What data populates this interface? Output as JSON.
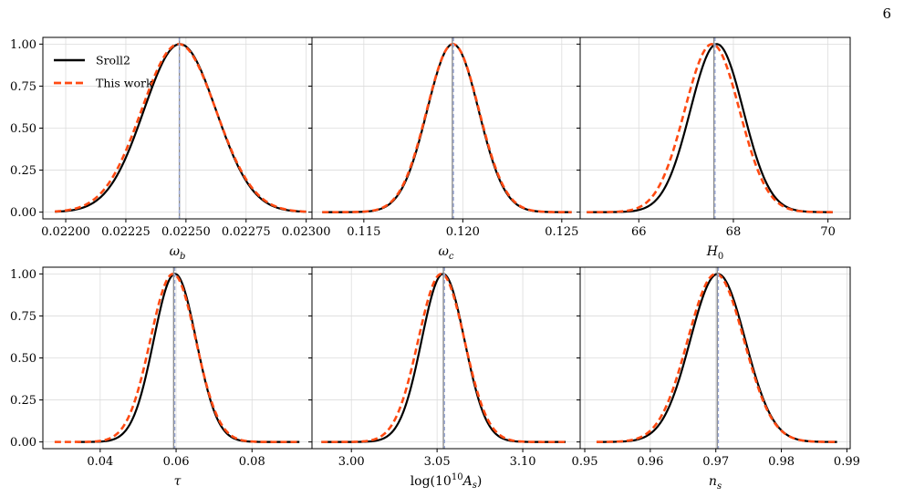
{
  "page": {
    "number": "6"
  },
  "legend": {
    "entries": [
      {
        "label": "Sroll2",
        "color": "#000000",
        "style": "solid"
      },
      {
        "label": "This work",
        "color": "#ff4a12",
        "style": "dashed"
      }
    ],
    "placement": "upper-left of first panel"
  },
  "colors": {
    "sroll2": "#000000",
    "this_work": "#ff4a12",
    "vline_solid": "#8c8c8c",
    "vline_dashed": "#9aa8d6",
    "grid": "#dcdcdc"
  },
  "chart_data": [
    {
      "type": "line",
      "panel": "omega_b",
      "xlabel": "ω_b",
      "xlabel_sub": "b",
      "xlim": [
        0.021905,
        0.023024
      ],
      "ylim": [
        -0.04,
        1.04
      ],
      "grid": true,
      "xticks": [
        0.022,
        0.02225,
        0.0225,
        0.02275,
        0.023
      ],
      "xticklabels": [
        "0.02200",
        "0.02225",
        "0.02250",
        "0.02275",
        "0.02300"
      ],
      "yticks": [
        0,
        0.25,
        0.5,
        0.75,
        1.0
      ],
      "yticklabels": [
        "0.00",
        "0.25",
        "0.50",
        "0.75",
        "1.00"
      ],
      "series": [
        {
          "name": "Sroll2",
          "mean": 0.022475,
          "sigma": 0.00015,
          "range": [
            0.021955,
            0.023
          ],
          "peak_marker": 0.022475
        },
        {
          "name": "This work",
          "mean": 0.02247,
          "sigma": 0.000155,
          "range": [
            0.021955,
            0.023
          ],
          "peak_marker": 0.02247
        }
      ]
    },
    {
      "type": "line",
      "panel": "omega_c",
      "xlabel": "ω_c",
      "xlabel_sub": "c",
      "xlim": [
        0.11238,
        0.12593
      ],
      "ylim": [
        -0.04,
        1.04
      ],
      "grid": true,
      "xticks": [
        0.115,
        0.12,
        0.125
      ],
      "xticklabels": [
        "0.115",
        "0.120",
        "0.125"
      ],
      "yticks": [
        0,
        0.25,
        0.5,
        0.75,
        1.0
      ],
      "series": [
        {
          "name": "Sroll2",
          "mean": 0.1195,
          "sigma": 0.0013,
          "range": [
            0.1129,
            0.1255
          ],
          "peak_marker": 0.1195
        },
        {
          "name": "This work",
          "mean": 0.1195,
          "sigma": 0.00132,
          "range": [
            0.1129,
            0.1255
          ],
          "peak_marker": 0.1195
        }
      ]
    },
    {
      "type": "line",
      "panel": "H0",
      "xlabel": "H",
      "xlabel_sub": "0",
      "xlim": [
        64.76,
        70.47
      ],
      "ylim": [
        -0.04,
        1.04
      ],
      "grid": true,
      "xticks": [
        66,
        68,
        70
      ],
      "xticklabels": [
        "66",
        "68",
        "70"
      ],
      "yticks": [
        0,
        0.25,
        0.5,
        0.75,
        1.0
      ],
      "series": [
        {
          "name": "Sroll2",
          "mean": 67.65,
          "sigma": 0.56,
          "range": [
            64.9,
            70.1
          ],
          "peak_marker": 67.6
        },
        {
          "name": "This work",
          "mean": 67.55,
          "sigma": 0.58,
          "range": [
            64.9,
            70.1
          ],
          "peak_marker": 67.6
        }
      ]
    },
    {
      "type": "line",
      "panel": "tau",
      "xlabel": "τ",
      "xlabel_sub": "",
      "xlim": [
        0.0249,
        0.0958
      ],
      "ylim": [
        -0.04,
        1.04
      ],
      "grid": true,
      "xticks": [
        0.04,
        0.06,
        0.08
      ],
      "xticklabels": [
        "0.04",
        "0.06",
        "0.08"
      ],
      "yticks": [
        0,
        0.25,
        0.5,
        0.75,
        1.0
      ],
      "series": [
        {
          "name": "Sroll2",
          "mean": 0.0597,
          "sigma": 0.0056,
          "range": [
            0.034,
            0.0925
          ],
          "peak_marker": 0.0595
        },
        {
          "name": "This work",
          "mean": 0.0592,
          "sigma": 0.006,
          "range": [
            0.028,
            0.0925
          ],
          "peak_marker": 0.0595
        }
      ]
    },
    {
      "type": "line",
      "panel": "logAs",
      "xlabel": "log(10",
      "xlabel_sup": "10",
      "xlabel_tail": "A",
      "xlabel_sub": "s",
      "xlim": [
        2.977,
        3.1335
      ],
      "ylim": [
        -0.04,
        1.04
      ],
      "grid": true,
      "xticks": [
        3.0,
        3.05,
        3.1
      ],
      "xticklabels": [
        "3.00",
        "3.05",
        "3.10"
      ],
      "yticks": [
        0,
        0.25,
        0.5,
        0.75,
        1.0
      ],
      "series": [
        {
          "name": "Sroll2",
          "mean": 3.0535,
          "sigma": 0.0125,
          "range": [
            2.9825,
            3.125
          ],
          "peak_marker": 3.054
        },
        {
          "name": "This work",
          "mean": 3.0525,
          "sigma": 0.0135,
          "range": [
            2.9825,
            3.125
          ],
          "peak_marker": 3.054
        }
      ]
    },
    {
      "type": "line",
      "panel": "ns",
      "xlabel": "n",
      "xlabel_sub": "s",
      "xlim": [
        0.9493,
        0.9905
      ],
      "ylim": [
        -0.04,
        1.04
      ],
      "grid": true,
      "xticks": [
        0.95,
        0.96,
        0.97,
        0.98,
        0.99
      ],
      "xticklabels": [
        "0.95",
        "0.96",
        "0.97",
        "0.98",
        "0.99"
      ],
      "yticks": [
        0,
        0.25,
        0.5,
        0.75,
        1.0
      ],
      "series": [
        {
          "name": "Sroll2",
          "mean": 0.9703,
          "sigma": 0.0042,
          "range": [
            0.9518,
            0.9885
          ],
          "peak_marker": 0.9703
        },
        {
          "name": "This work",
          "mean": 0.97,
          "sigma": 0.0043,
          "range": [
            0.9518,
            0.9885
          ],
          "peak_marker": 0.9703
        }
      ]
    }
  ]
}
